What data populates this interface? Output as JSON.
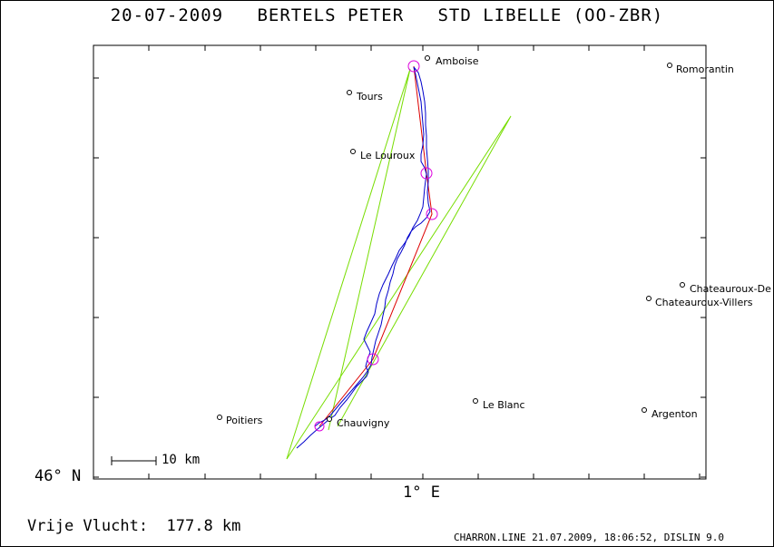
{
  "title": "20-07-2009   BERTELS PETER   STD LIBELLE (OO-ZBR)",
  "axes": {
    "lat_label": "46° N",
    "lon_label": "1° E"
  },
  "distance": "Vrije Vlucht:  177.8 km",
  "scale_label": "10 km",
  "footer": "CHARRON.LINE 21.07.2009, 18:06:52, DISLIN 9.0",
  "colors": {
    "track": "#0000cc",
    "task_line": "#dd0000",
    "sector": "#77dd00",
    "turnpoint": "#dd00dd"
  },
  "places": [
    {
      "name": "Amboise",
      "id": "amboise"
    },
    {
      "name": "Romorantin",
      "id": "romorantin"
    },
    {
      "name": "Tours",
      "id": "tours"
    },
    {
      "name": "Le Louroux",
      "id": "le-louroux"
    },
    {
      "name": "Chateauroux-De",
      "id": "chateauroux-de"
    },
    {
      "name": "Chateauroux-Villers",
      "id": "chateauroux-villers"
    },
    {
      "name": "Le Blanc",
      "id": "le-blanc"
    },
    {
      "name": "Argenton",
      "id": "argenton"
    },
    {
      "name": "Poitiers",
      "id": "poitiers"
    },
    {
      "name": "Chauvigny",
      "id": "chauvigny"
    }
  ]
}
